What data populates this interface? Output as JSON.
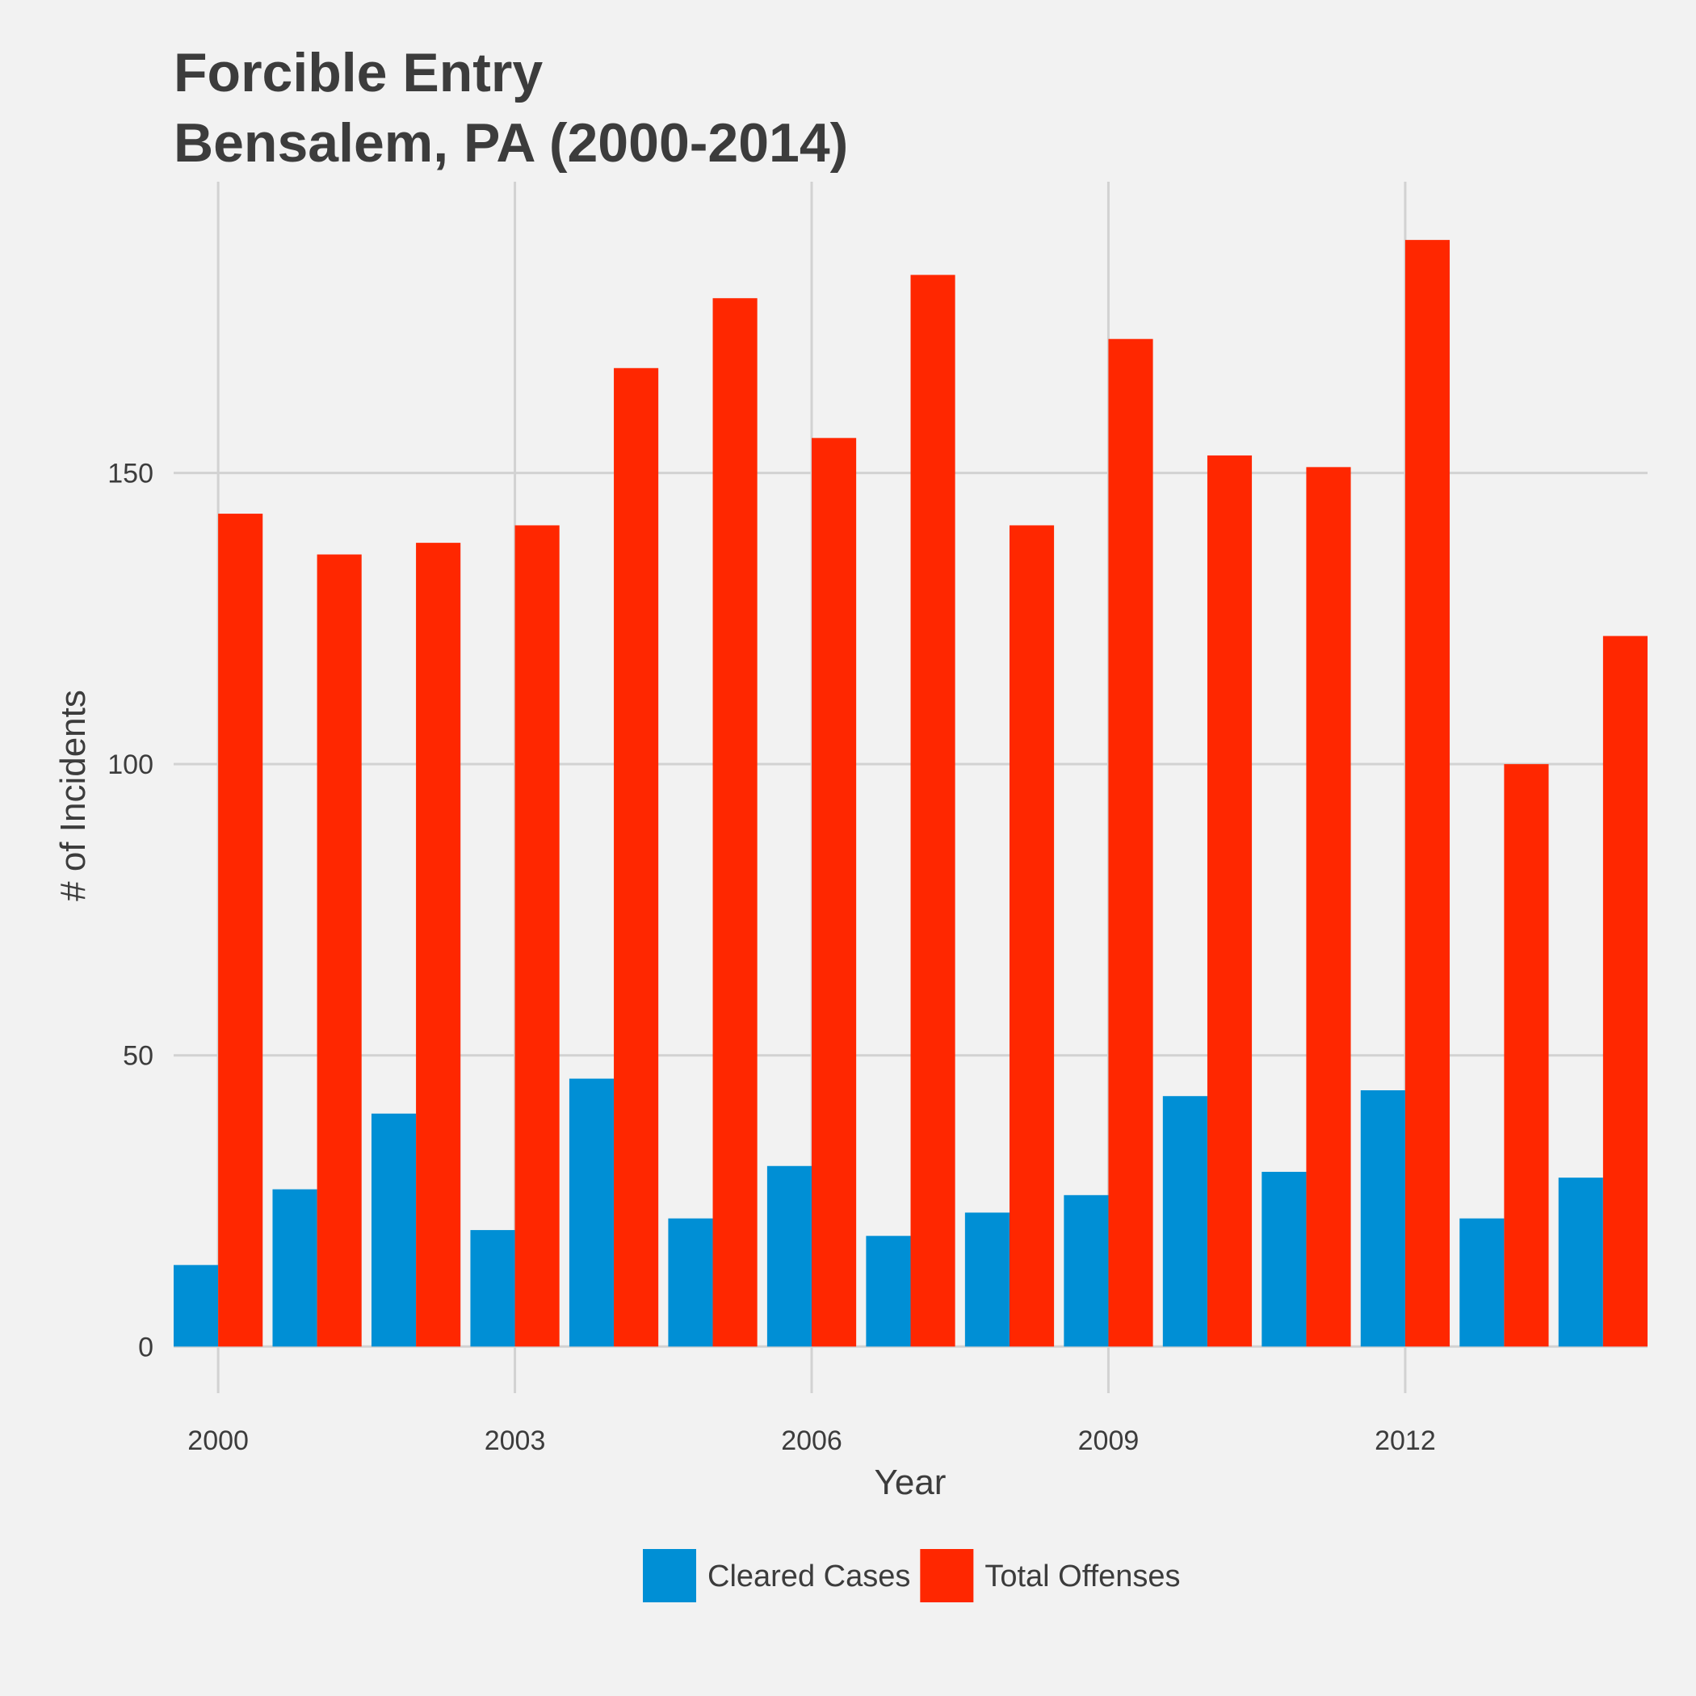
{
  "chart_data": {
    "type": "bar",
    "title": "Forcible Entry",
    "subtitle": "Bensalem, PA (2000-2014)",
    "xlabel": "Year",
    "ylabel": "# of Incidents",
    "categories": [
      2000,
      2001,
      2002,
      2003,
      2004,
      2005,
      2006,
      2007,
      2008,
      2009,
      2010,
      2011,
      2012,
      2013,
      2014
    ],
    "x_ticks": [
      "2000",
      "2003",
      "2006",
      "2009",
      "2012"
    ],
    "y_ticks": [
      "0",
      "50",
      "100",
      "150"
    ],
    "ylim": [
      -8,
      200
    ],
    "xlim": [
      1999.55,
      2014.45
    ],
    "grid": true,
    "legend_position": "bottom",
    "series": [
      {
        "name": "Cleared Cases",
        "color": "#008fd5",
        "values": [
          14,
          27,
          40,
          20,
          46,
          22,
          31,
          19,
          23,
          26,
          43,
          30,
          44,
          22,
          29
        ]
      },
      {
        "name": "Total Offenses",
        "color": "#ff2700",
        "values": [
          143,
          136,
          138,
          141,
          168,
          180,
          156,
          184,
          141,
          173,
          153,
          151,
          190,
          100,
          122
        ]
      }
    ]
  },
  "colors": {
    "background": "#f2f2f2",
    "grid": "#d2d2d2",
    "text": "#3c3c3c"
  }
}
